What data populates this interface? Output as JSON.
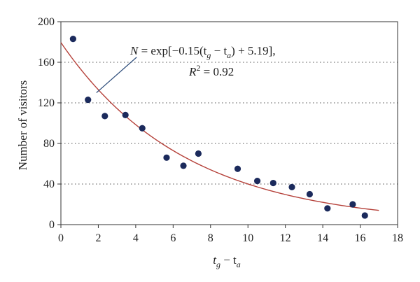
{
  "chart_data": {
    "type": "scatter",
    "xlabel_main": "t",
    "xlabel_sub1": "g",
    "xlabel_mid": " − t",
    "xlabel_sub2": "a",
    "ylabel": "Number of visitors",
    "xlim": [
      0,
      18
    ],
    "ylim": [
      0,
      200
    ],
    "xticks": [
      "0",
      "2",
      "4",
      "6",
      "8",
      "10",
      "12",
      "14",
      "16",
      "18"
    ],
    "yticks": [
      "0",
      "40",
      "80",
      "120",
      "160",
      "200"
    ],
    "grid": "horizontal dotted",
    "series": [
      {
        "x": [
          0.65,
          1.45,
          2.35,
          3.45,
          4.35,
          5.65,
          6.55,
          7.35,
          9.45,
          10.5,
          11.35,
          12.35,
          13.3,
          14.25,
          15.6,
          16.25
        ],
        "y": [
          183,
          123,
          107,
          108,
          95,
          66,
          58,
          70,
          55,
          43,
          41,
          37,
          30,
          16,
          20,
          9
        ],
        "color": "#1b2a5c"
      }
    ],
    "fit": {
      "a": -0.15,
      "b": 5.19,
      "x_range": [
        0,
        17
      ],
      "color": "#b5413a"
    },
    "annotation": {
      "eq_N": "N",
      "eq_mid": " = exp[−0.15(t",
      "eq_sub_g": "g",
      "eq_minus": " − t",
      "eq_sub_a": "a",
      "eq_tail": ") + 5.19],",
      "r2_R": "R",
      "r2_sup": "2",
      "r2_tail": " = 0.92",
      "pointer_from": [
        4.05,
        165
      ],
      "pointer_to": [
        1.9,
        130
      ],
      "pointer_color": "#2d4c7a"
    }
  }
}
